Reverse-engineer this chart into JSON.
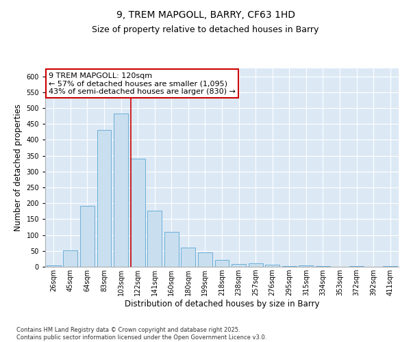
{
  "title": "9, TREM MAPGOLL, BARRY, CF63 1HD",
  "subtitle": "Size of property relative to detached houses in Barry",
  "xlabel": "Distribution of detached houses by size in Barry",
  "ylabel": "Number of detached properties",
  "bar_color": "#c9dff0",
  "bar_edge_color": "#6aaed6",
  "categories": [
    "26sqm",
    "45sqm",
    "64sqm",
    "83sqm",
    "103sqm",
    "122sqm",
    "141sqm",
    "160sqm",
    "180sqm",
    "199sqm",
    "218sqm",
    "238sqm",
    "257sqm",
    "276sqm",
    "295sqm",
    "315sqm",
    "334sqm",
    "353sqm",
    "372sqm",
    "392sqm",
    "411sqm"
  ],
  "values": [
    5,
    52,
    191,
    432,
    482,
    340,
    176,
    110,
    60,
    45,
    22,
    8,
    11,
    6,
    2,
    5,
    2,
    1,
    2,
    1,
    2
  ],
  "ylim": [
    0,
    625
  ],
  "yticks": [
    0,
    50,
    100,
    150,
    200,
    250,
    300,
    350,
    400,
    450,
    500,
    550,
    600
  ],
  "vline_index": 5,
  "vline_color": "#cc0000",
  "annotation_text_line1": "9 TREM MAPGOLL: 120sqm",
  "annotation_text_line2": "← 57% of detached houses are smaller (1,095)",
  "annotation_text_line3": "43% of semi-detached houses are larger (830) →",
  "annotation_box_color": "#ffffff",
  "annotation_box_edge_color": "#cc0000",
  "footer": "Contains HM Land Registry data © Crown copyright and database right 2025.\nContains public sector information licensed under the Open Government Licence v3.0.",
  "bg_color": "#dce9f5",
  "grid_color": "#ffffff",
  "title_fontsize": 10,
  "subtitle_fontsize": 9,
  "tick_fontsize": 7,
  "ylabel_fontsize": 8.5,
  "xlabel_fontsize": 8.5,
  "footer_fontsize": 6,
  "annot_fontsize": 8
}
